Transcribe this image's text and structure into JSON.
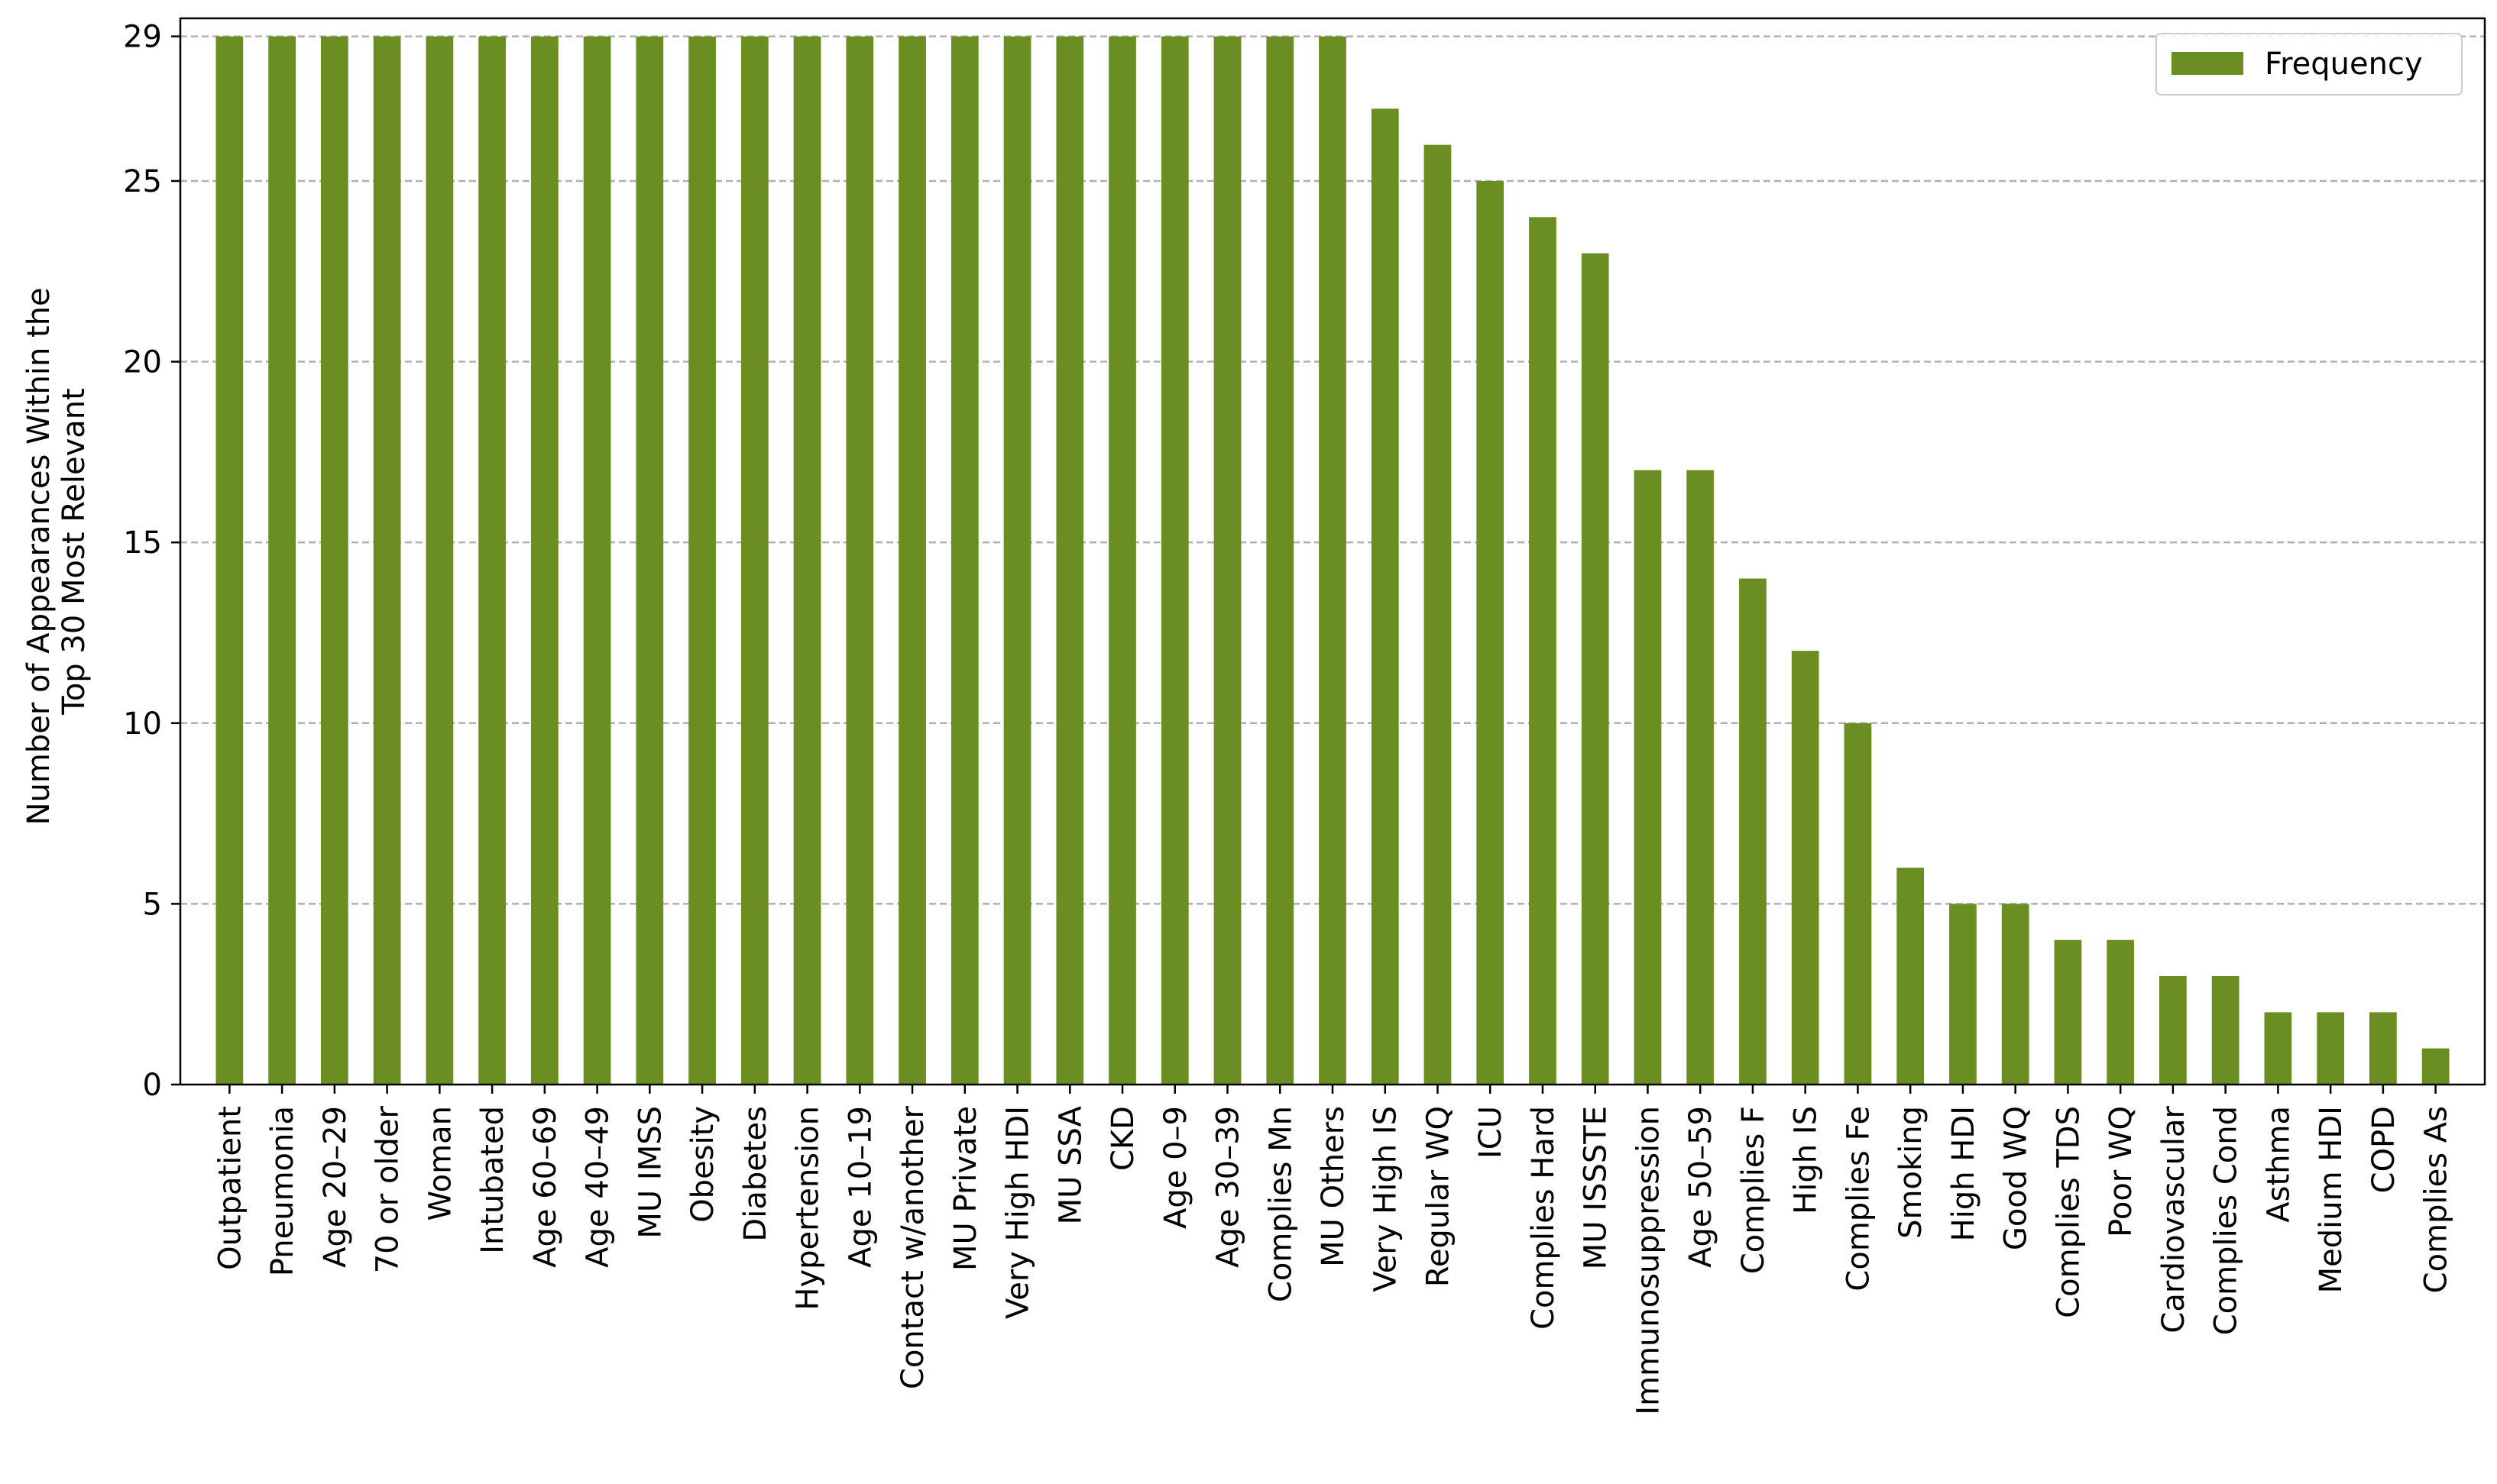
{
  "chart_data": {
    "type": "bar",
    "title": "",
    "xlabel": "",
    "ylabel": [
      "Number of Appearances Within the",
      "Top 30 Most Relevant"
    ],
    "ylim": [
      0,
      29.5
    ],
    "yticks": [
      0,
      5,
      10,
      15,
      20,
      25,
      29
    ],
    "grid": "horizontal dashed",
    "legend_position": "top-right",
    "categories": [
      "Outpatient",
      "Pneumonia",
      "Age 20–29",
      "70 or older",
      "Woman",
      "Intubated",
      "Age 60–69",
      "Age 40–49",
      "MU IMSS",
      "Obesity",
      "Diabetes",
      "Hypertension",
      "Age 10–19",
      "Contact w/another",
      "MU Private",
      "Very High HDI",
      "MU SSA",
      "CKD",
      "Age 0–9",
      "Age 30–39",
      "Complies Mn",
      "MU Others",
      "Very High IS",
      "Regular WQ",
      "ICU",
      "Complies Hard",
      "MU ISSSTE",
      "Immunosuppression",
      "Age 50–59",
      "Complies F",
      "High IS",
      "Complies Fe",
      "Smoking",
      "High HDI",
      "Good WQ",
      "Complies TDS",
      "Poor WQ",
      "Cardiovascular",
      "Complies Cond",
      "Asthma",
      "Medium HDI",
      "COPD",
      "Complies As"
    ],
    "series": [
      {
        "name": "Frequency",
        "color": "#6b8e23",
        "values": [
          29,
          29,
          29,
          29,
          29,
          29,
          29,
          29,
          29,
          29,
          29,
          29,
          29,
          29,
          29,
          29,
          29,
          29,
          29,
          29,
          29,
          29,
          27,
          26,
          25,
          24,
          23,
          17,
          17,
          14,
          12,
          10,
          6,
          5,
          5,
          4,
          4,
          3,
          3,
          2,
          2,
          2,
          1
        ]
      }
    ]
  }
}
